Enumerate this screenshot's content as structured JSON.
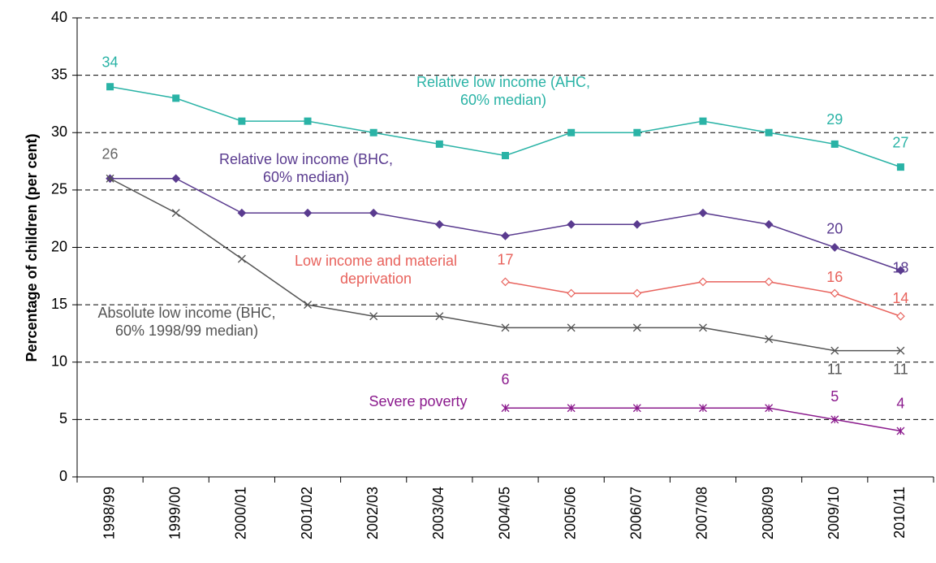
{
  "chart_data": {
    "type": "line",
    "y_label": "Percentage of children (per cent)",
    "categories": [
      "1998/99",
      "1999/00",
      "2000/01",
      "2001/02",
      "2002/03",
      "2003/04",
      "2004/05",
      "2005/06",
      "2006/07",
      "2007/08",
      "2008/09",
      "2009/10",
      "2010/11"
    ],
    "ylim": [
      0,
      40
    ],
    "yticks": [
      0,
      5,
      10,
      15,
      20,
      25,
      30,
      35,
      40
    ],
    "grid": true,
    "series": [
      {
        "name": "Relative low income (AHC, 60% median)",
        "color": "#2ab3a6",
        "marker": "square",
        "values": [
          34,
          33,
          31,
          31,
          30,
          29,
          28,
          30,
          30,
          31,
          30,
          29,
          27
        ]
      },
      {
        "name": "Relative low income (BHC, 60% median)",
        "color": "#5a3b8f",
        "marker": "diamond",
        "values": [
          26,
          26,
          23,
          23,
          23,
          22,
          21,
          22,
          22,
          23,
          22,
          20,
          18
        ]
      },
      {
        "name": "Low income and material deprivation",
        "color": "#e8625c",
        "marker": "open-diamond",
        "values": [
          null,
          null,
          null,
          null,
          null,
          null,
          17,
          16,
          16,
          17,
          17,
          16,
          14
        ]
      },
      {
        "name": "Absolute low income (BHC, 60% 1998/99 median)",
        "color": "#555555",
        "marker": "cross",
        "values": [
          26,
          23,
          19,
          15,
          14,
          14,
          13,
          13,
          13,
          13,
          12,
          11,
          11
        ]
      },
      {
        "name": "Severe poverty",
        "color": "#8b1b8d",
        "marker": "star",
        "values": [
          null,
          null,
          null,
          null,
          null,
          null,
          6,
          6,
          6,
          6,
          6,
          5,
          4
        ]
      }
    ]
  }
}
